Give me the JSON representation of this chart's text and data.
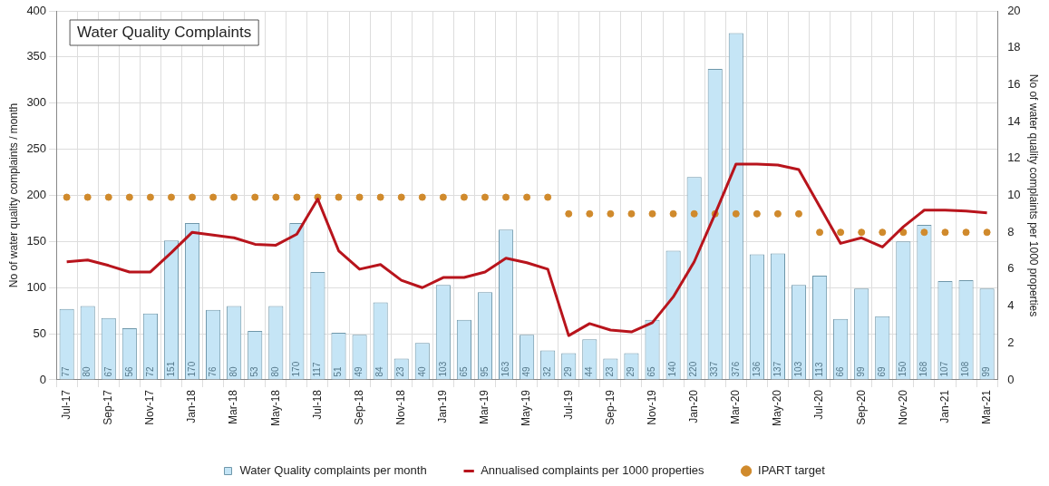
{
  "chart_data": {
    "type": "bar",
    "title": "Water Quality Complaints",
    "ylabel": "No of water quality complaints / month",
    "y2label": "No of water quality complaints per 1000 properties",
    "categories": [
      "Jul-17",
      null,
      "Sep-17",
      null,
      "Nov-17",
      null,
      "Jan-18",
      null,
      "Mar-18",
      null,
      "May-18",
      null,
      "Jul-18",
      null,
      "Sep-18",
      null,
      "Nov-18",
      null,
      "Jan-19",
      null,
      "Mar-19",
      null,
      "May-19",
      null,
      "Jul-19",
      null,
      "Sep-19",
      null,
      "Nov-19",
      null,
      "Jan-20",
      null,
      "Mar-20",
      null,
      "May-20",
      null,
      "Jul-20",
      null,
      "Sep-20",
      null,
      "Nov-20",
      null,
      "Jan-21",
      null,
      "Mar-21"
    ],
    "series": [
      {
        "name": "Water Quality complaints per month",
        "color": "#c5e5f6",
        "data_labels": true,
        "values": [
          77,
          80,
          67,
          56,
          72,
          151,
          170,
          76,
          80,
          53,
          80,
          170,
          117,
          51,
          49,
          84,
          23,
          40,
          103,
          65,
          95,
          163,
          49,
          32,
          29,
          44,
          23,
          29,
          65,
          140,
          220,
          337,
          376,
          136,
          137,
          103,
          113,
          66,
          99,
          69,
          150,
          168,
          107,
          108,
          99
        ]
      },
      {
        "name": "Annualised complaints per 1000 properties",
        "type": "line",
        "axis": "y2",
        "color": "#b8141c",
        "marker": "none",
        "line_style": "solid",
        "values": [
          6.4,
          6.5,
          6.2,
          5.85,
          5.85,
          6.9,
          8.0,
          7.85,
          7.7,
          7.35,
          7.3,
          7.9,
          9.8,
          7.0,
          6.0,
          6.25,
          5.4,
          5.0,
          5.55,
          5.55,
          5.85,
          6.6,
          6.35,
          6.0,
          2.4,
          3.05,
          2.7,
          2.6,
          3.1,
          4.5,
          6.4,
          9.0,
          11.7,
          11.7,
          11.65,
          11.4,
          9.4,
          7.4,
          7.7,
          7.2,
          8.3,
          9.2,
          9.2,
          9.15,
          9.05
        ]
      },
      {
        "name": "IPART target",
        "type": "scatter",
        "axis": "y2",
        "color": "#d08a2c",
        "marker": "circle",
        "values": [
          9.9,
          9.9,
          9.9,
          9.9,
          9.9,
          9.9,
          9.9,
          9.9,
          9.9,
          9.9,
          9.9,
          9.9,
          9.9,
          9.9,
          9.9,
          9.9,
          9.9,
          9.9,
          9.9,
          9.9,
          9.9,
          9.9,
          9.9,
          9.9,
          9,
          9,
          9,
          9,
          9,
          9,
          9,
          9,
          9,
          9,
          9,
          9,
          8,
          8,
          8,
          8,
          8,
          8,
          8,
          8,
          8
        ]
      }
    ],
    "ylim": [
      0,
      400
    ],
    "yticks": [
      0,
      50,
      100,
      150,
      200,
      250,
      300,
      350,
      400
    ],
    "y2lim": [
      0,
      20
    ],
    "y2ticks": [
      0,
      2,
      4,
      6,
      8,
      10,
      12,
      14,
      16,
      18,
      20
    ],
    "grid": true,
    "legend": "bottom"
  }
}
